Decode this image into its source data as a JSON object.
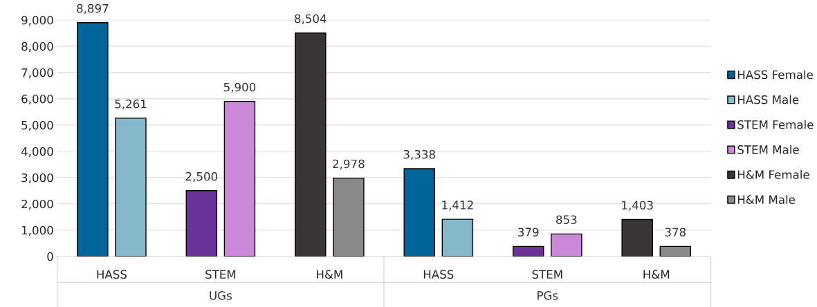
{
  "chart_data": {
    "type": "bar",
    "categories": [
      "HASS",
      "STEM",
      "H&M",
      "HASS",
      "STEM",
      "H&M"
    ],
    "annotations": [
      "UGs",
      "PGs"
    ],
    "series": [
      {
        "name": "HASS Female",
        "color": "#006699",
        "values": [
          8897,
          null,
          null,
          3338,
          null,
          null
        ],
        "value_labels": [
          "8,897",
          null,
          null,
          "3,338",
          null,
          null
        ]
      },
      {
        "name": "HASS Male",
        "color": "#85b8cb",
        "values": [
          5261,
          null,
          null,
          1412,
          null,
          null
        ],
        "value_labels": [
          "5,261",
          null,
          null,
          "1,412",
          null,
          null
        ]
      },
      {
        "name": "STEM Female",
        "color": "#6a3399",
        "values": [
          null,
          2500,
          null,
          null,
          379,
          null
        ],
        "value_labels": [
          null,
          "2,500",
          null,
          null,
          "379",
          null
        ]
      },
      {
        "name": "STEM Male",
        "color": "#cc88d8",
        "values": [
          null,
          5900,
          null,
          null,
          853,
          null
        ],
        "value_labels": [
          null,
          "5,900",
          null,
          null,
          "853",
          null
        ]
      },
      {
        "name": "H&M Female",
        "color": "#3a3638",
        "values": [
          null,
          null,
          8504,
          null,
          null,
          1403
        ],
        "value_labels": [
          null,
          null,
          "8,504",
          null,
          null,
          "1,403"
        ]
      },
      {
        "name": "H&M Male",
        "color": "#8a8889",
        "values": [
          null,
          null,
          2978,
          null,
          null,
          378
        ],
        "value_labels": [
          null,
          null,
          "2,978",
          null,
          null,
          "378"
        ]
      }
    ],
    "ylim": [
      0,
      9000
    ],
    "yticks": [
      {
        "value": 0,
        "label": "0"
      },
      {
        "value": 1000,
        "label": "1,000"
      },
      {
        "value": 2000,
        "label": "2,000"
      },
      {
        "value": 3000,
        "label": "3,000"
      },
      {
        "value": 4000,
        "label": "4,000"
      },
      {
        "value": 5000,
        "label": "5,000"
      },
      {
        "value": 6000,
        "label": "6,000"
      },
      {
        "value": 7000,
        "label": "7,000"
      },
      {
        "value": 8000,
        "label": "8,000"
      },
      {
        "value": 9000,
        "label": "9,000"
      }
    ],
    "grid": "y",
    "legend": "right"
  }
}
